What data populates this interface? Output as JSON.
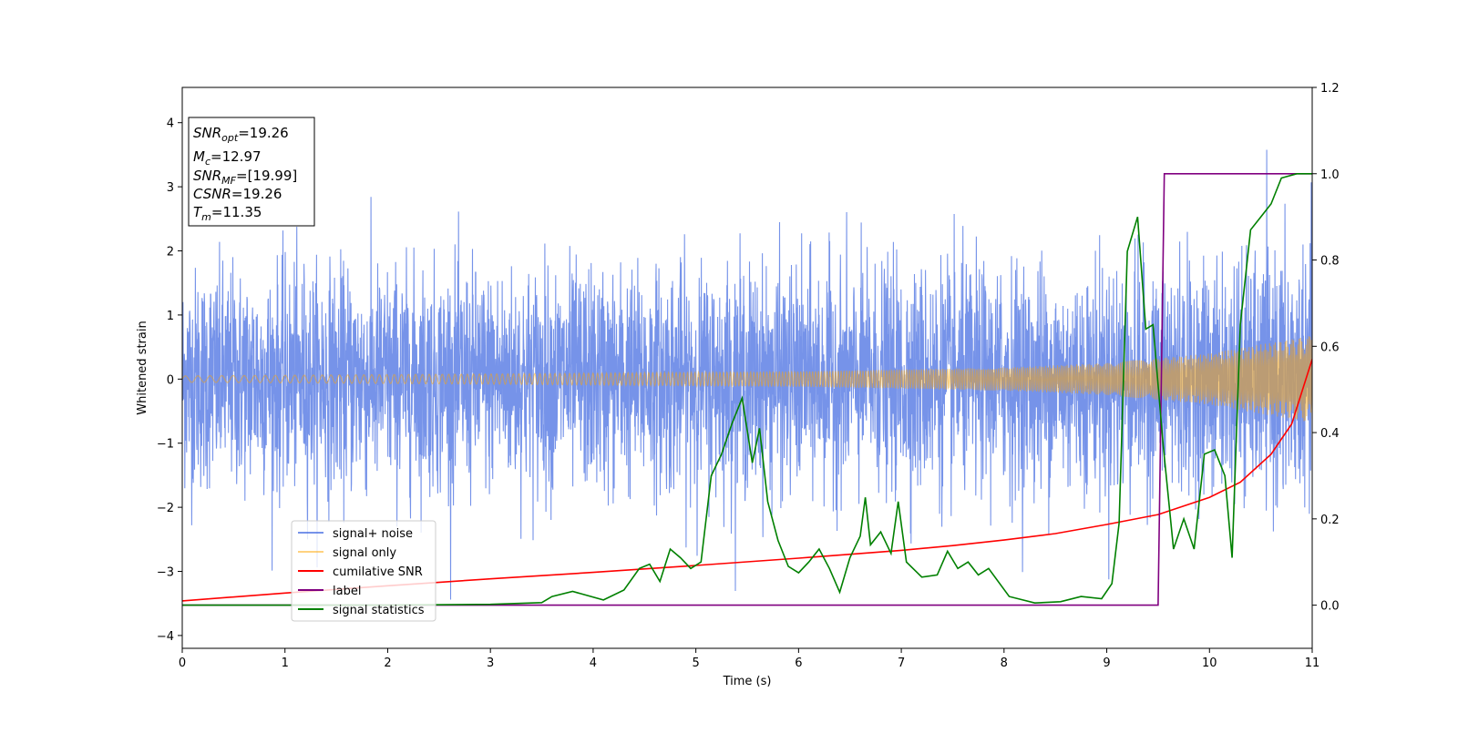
{
  "chart_data": {
    "type": "line",
    "xlabel": "Time (s)",
    "ylabel": "Whitened strain",
    "xlim": [
      0,
      11
    ],
    "ylim_left": [
      -4.2,
      4.55
    ],
    "ylim_right": [
      -0.1,
      1.2
    ],
    "x_ticks": [
      "0",
      "1",
      "2",
      "3",
      "4",
      "5",
      "6",
      "7",
      "8",
      "9",
      "10",
      "11"
    ],
    "y_ticks_left": [
      "4",
      "3",
      "2",
      "1",
      "0",
      "−1",
      "−2",
      "−3",
      "−4"
    ],
    "y_ticks_right": [
      "1.2",
      "1.0",
      "0.8",
      "0.6",
      "0.4",
      "0.2",
      "0.0"
    ],
    "grid": false,
    "legend_position": "lower-left",
    "annotation": {
      "snr_opt": {
        "var": "SNR",
        "sub": "opt",
        "value": "=19.26"
      },
      "mc": {
        "var": "M",
        "sub": "c",
        "value": "=12.97"
      },
      "snr_mf": {
        "var": "SNR",
        "sub": "MF",
        "value": "=[19.99]"
      },
      "csnr": {
        "var": "CSNR",
        "sub": "",
        "value": "=19.26"
      },
      "tm": {
        "var": "T",
        "sub": "m",
        "value": "=11.35"
      }
    },
    "series": [
      {
        "name": "signal+ noise",
        "color": "#4169e1",
        "axis": "left",
        "description": "whitened noise, amplitude up to ~4"
      },
      {
        "name": "signal only",
        "color": "#ffa500",
        "axis": "left",
        "envelope": [
          [
            0,
            0.05
          ],
          [
            3,
            0.08
          ],
          [
            6,
            0.12
          ],
          [
            8,
            0.18
          ],
          [
            9,
            0.25
          ],
          [
            10,
            0.4
          ],
          [
            11,
            0.68
          ]
        ]
      },
      {
        "name": "cumilative SNR",
        "color": "#ff0000",
        "axis": "right",
        "x": [
          0,
          1,
          2,
          3,
          4,
          5,
          6,
          7,
          7.5,
          8,
          8.5,
          9,
          9.5,
          10,
          10.3,
          10.6,
          10.8,
          11
        ],
        "y": [
          0.01,
          0.028,
          0.045,
          0.061,
          0.076,
          0.092,
          0.109,
          0.127,
          0.138,
          0.151,
          0.166,
          0.187,
          0.21,
          0.25,
          0.285,
          0.35,
          0.42,
          0.57
        ]
      },
      {
        "name": "label",
        "color": "#800080",
        "axis": "right",
        "x": [
          0,
          9.5,
          9.56,
          11
        ],
        "y": [
          0.0,
          0.0,
          1.0,
          1.0
        ]
      },
      {
        "name": "signal statistics",
        "color": "#008000",
        "axis": "right",
        "x": [
          0,
          2,
          3,
          3.5,
          3.6,
          3.8,
          4.1,
          4.3,
          4.45,
          4.55,
          4.65,
          4.75,
          4.85,
          4.95,
          5.05,
          5.15,
          5.25,
          5.35,
          5.45,
          5.55,
          5.62,
          5.7,
          5.8,
          5.9,
          6,
          6.1,
          6.2,
          6.3,
          6.4,
          6.5,
          6.6,
          6.65,
          6.7,
          6.8,
          6.9,
          6.97,
          7.05,
          7.2,
          7.35,
          7.45,
          7.55,
          7.65,
          7.75,
          7.85,
          8.05,
          8.3,
          8.55,
          8.75,
          8.95,
          9.05,
          9.12,
          9.2,
          9.3,
          9.38,
          9.45,
          9.55,
          9.65,
          9.75,
          9.85,
          9.95,
          10.05,
          10.15,
          10.22,
          10.3,
          10.4,
          10.5,
          10.6,
          10.7,
          10.85,
          11
        ],
        "y": [
          0.0,
          0.0,
          0.002,
          0.006,
          0.02,
          0.032,
          0.012,
          0.035,
          0.085,
          0.095,
          0.055,
          0.13,
          0.11,
          0.085,
          0.1,
          0.3,
          0.35,
          0.42,
          0.48,
          0.33,
          0.41,
          0.24,
          0.15,
          0.09,
          0.075,
          0.1,
          0.13,
          0.085,
          0.03,
          0.11,
          0.16,
          0.25,
          0.14,
          0.17,
          0.12,
          0.24,
          0.1,
          0.065,
          0.07,
          0.125,
          0.085,
          0.1,
          0.07,
          0.085,
          0.02,
          0.005,
          0.008,
          0.02,
          0.015,
          0.05,
          0.19,
          0.82,
          0.9,
          0.64,
          0.65,
          0.37,
          0.13,
          0.2,
          0.13,
          0.35,
          0.36,
          0.3,
          0.11,
          0.65,
          0.87,
          0.9,
          0.93,
          0.99,
          1.0,
          1.0
        ]
      }
    ]
  }
}
